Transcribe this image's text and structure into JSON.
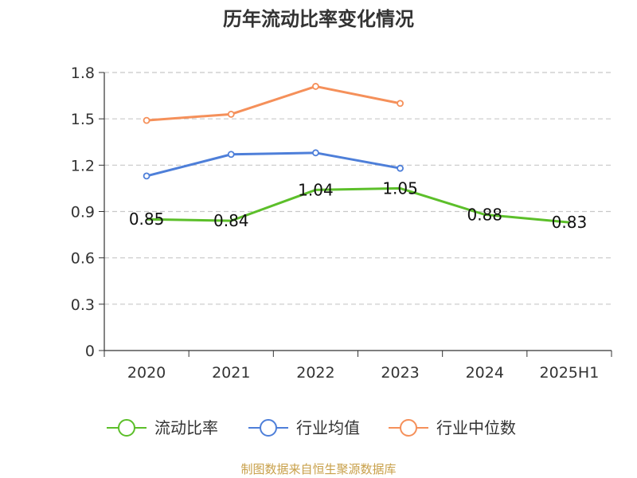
{
  "chart_data": {
    "type": "line",
    "title": "历年流动比率变化情况",
    "xlabel": "",
    "ylabel": "",
    "categories": [
      "2020",
      "2021",
      "2022",
      "2023",
      "2024",
      "2025H1"
    ],
    "ylim": [
      0,
      1.8
    ],
    "yticks": [
      "0",
      "0.3",
      "0.6",
      "0.9",
      "1.2",
      "1.5",
      "1.8"
    ],
    "grid": true,
    "legend_position": "bottom",
    "series": [
      {
        "name": "流动比率",
        "color": "#5cbf2a",
        "values": [
          0.85,
          0.84,
          1.04,
          1.05,
          0.88,
          0.83
        ],
        "labels": [
          "0.85",
          "0.84",
          "1.04",
          "1.05",
          "0.88",
          "0.83"
        ]
      },
      {
        "name": "行业均值",
        "color": "#4e7fd9",
        "values": [
          1.13,
          1.27,
          1.28,
          1.18,
          null,
          null
        ]
      },
      {
        "name": "行业中位数",
        "color": "#f5905a",
        "values": [
          1.49,
          1.53,
          1.71,
          1.6,
          null,
          null
        ]
      }
    ]
  },
  "source": "制图数据来自恒生聚源数据库"
}
